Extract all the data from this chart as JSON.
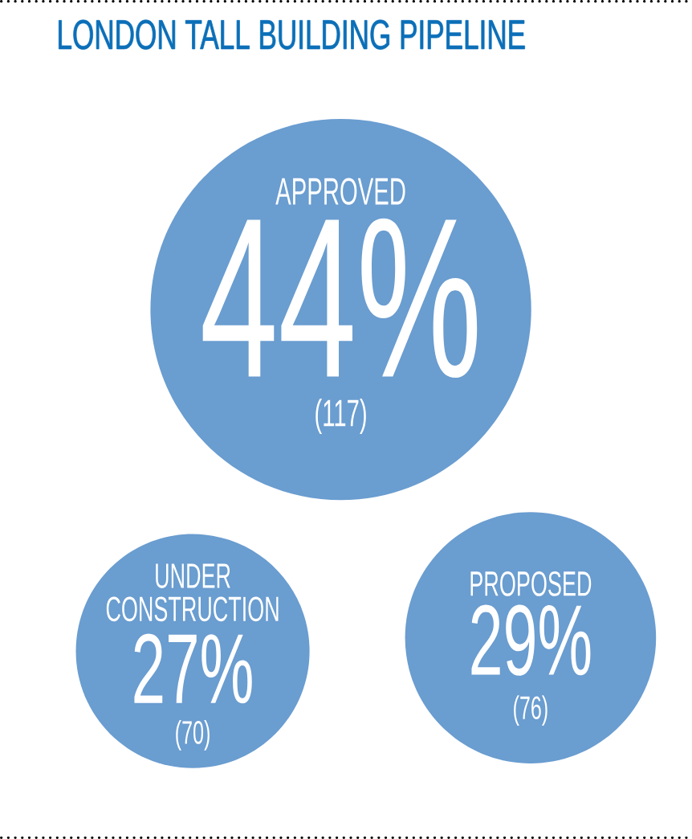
{
  "chart_data": {
    "type": "other",
    "title": "LONDON TALL BUILDING PIPELINE",
    "categories": [
      "APPROVED",
      "UNDER CONSTRUCTION",
      "PROPOSED"
    ],
    "series": [
      {
        "values": [
          44,
          27,
          29
        ],
        "value_labels": [
          "44%",
          "27%",
          "29%"
        ],
        "color": "#6a9dd0"
      },
      {
        "values": [
          117,
          70,
          76
        ],
        "value_labels": [
          "(117)",
          "(70)",
          "(76)"
        ]
      }
    ]
  }
}
